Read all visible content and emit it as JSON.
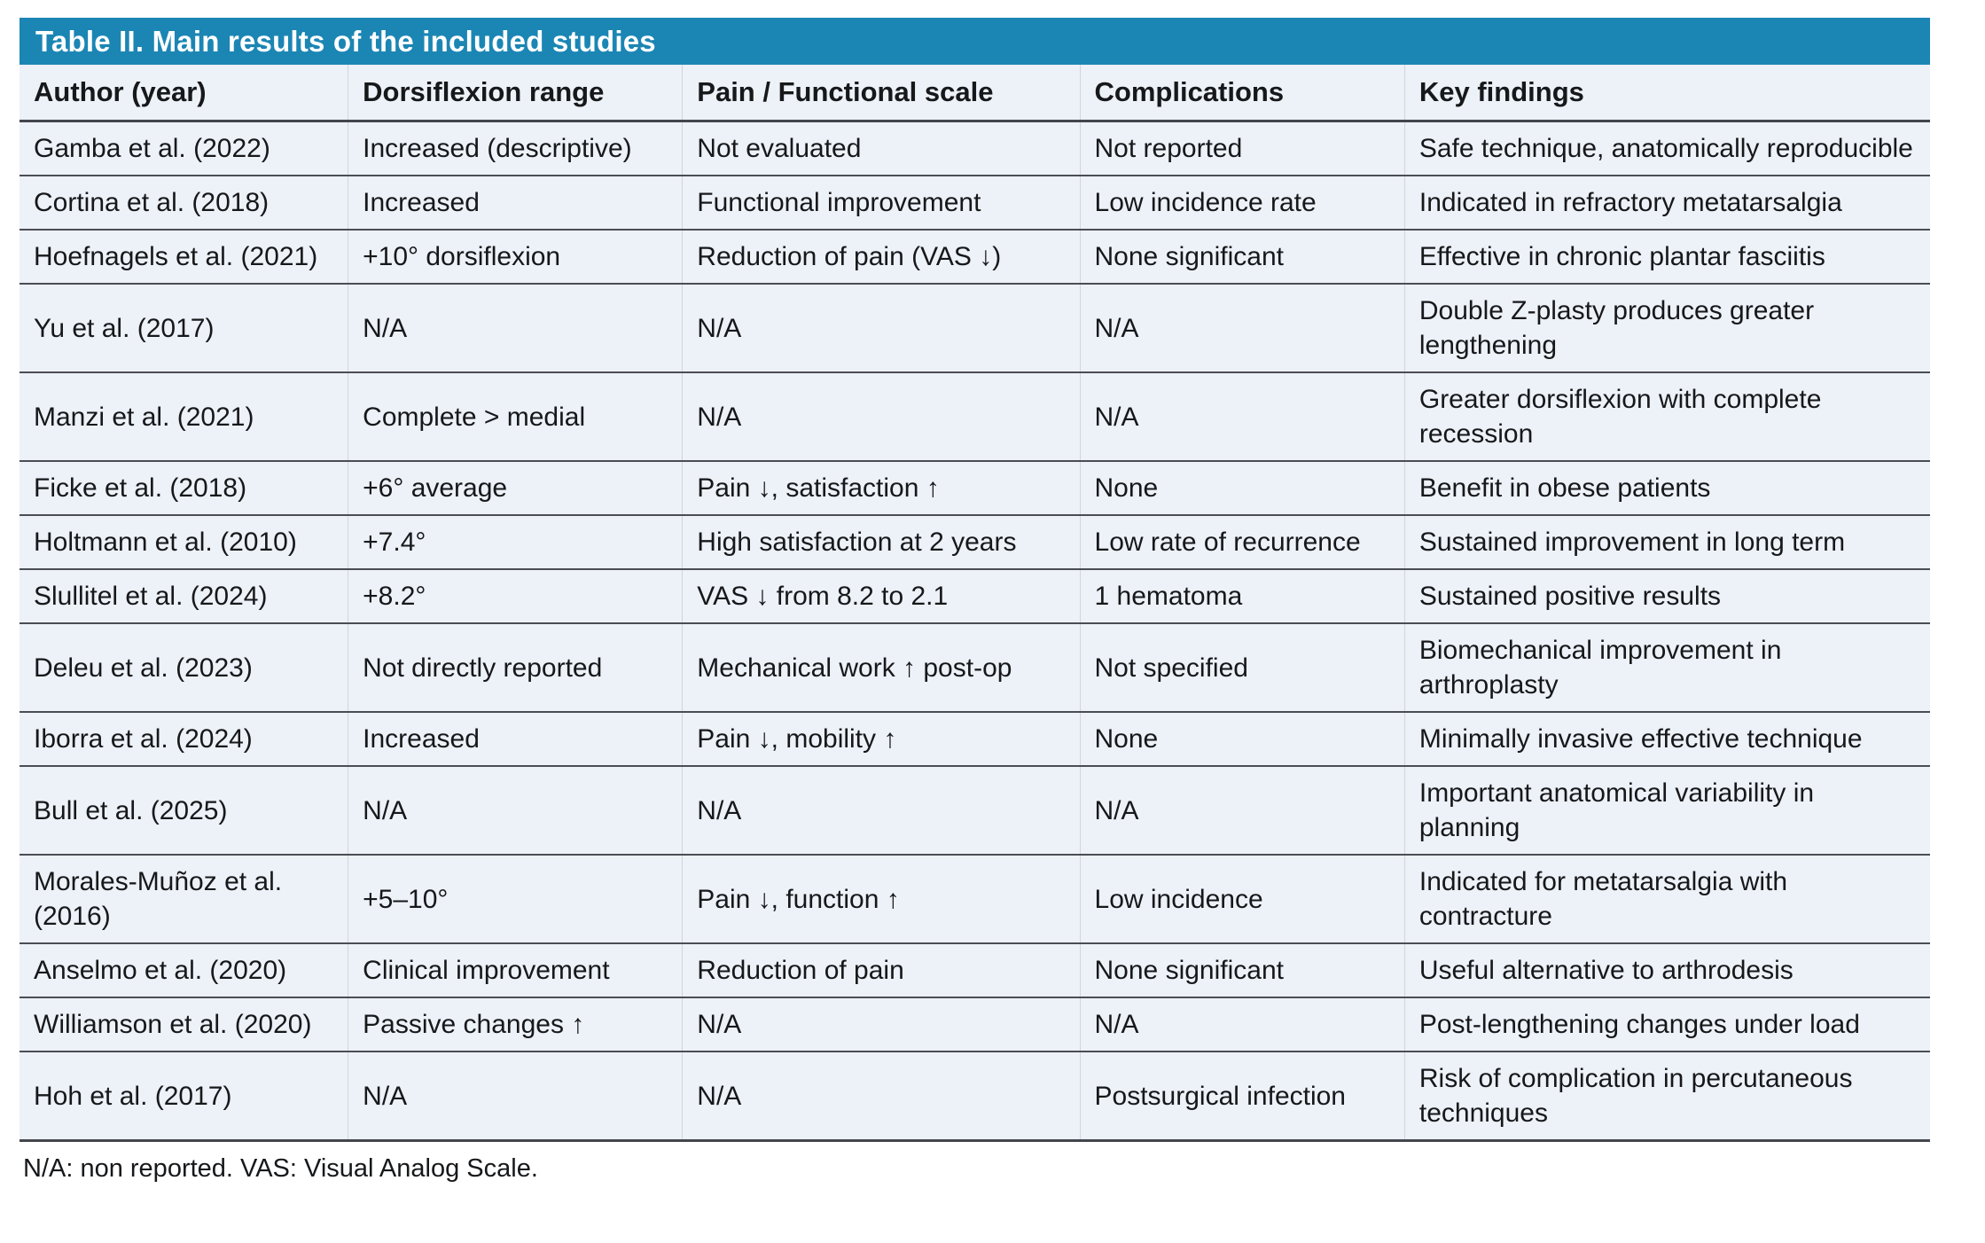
{
  "title": "Table II. Main results of the included studies",
  "footnote": "N/A: non reported. VAS: Visual Analog Scale.",
  "colors": {
    "title_bar_background": "#1b86b4",
    "title_text": "#ffffff",
    "row_background": "#edf1f8",
    "dark_rule": "#43474d",
    "light_column_rule": "#cfd6e0"
  },
  "table": {
    "columns": [
      "Author (year)",
      "Dorsiflexion range",
      "Pain / Functional scale",
      "Complications",
      "Key findings"
    ],
    "rows": [
      [
        "Gamba et al. (2022)",
        "Increased (descriptive)",
        "Not evaluated",
        "Not reported",
        "Safe technique, anatomically reproducible"
      ],
      [
        "Cortina et al. (2018)",
        "Increased",
        "Functional improvement",
        "Low incidence rate",
        "Indicated in refractory metatarsalgia"
      ],
      [
        "Hoefnagels et al. (2021)",
        "+10° dorsiflexion",
        "Reduction of pain (VAS ↓)",
        "None significant",
        "Effective in chronic plantar fasciitis"
      ],
      [
        "Yu et al. (2017)",
        "N/A",
        "N/A",
        "N/A",
        "Double Z-plasty produces greater lengthening"
      ],
      [
        "Manzi et al. (2021)",
        "Complete > medial",
        "N/A",
        "N/A",
        "Greater dorsiflexion with complete recession"
      ],
      [
        "Ficke et al. (2018)",
        "+6° average",
        "Pain ↓, satisfaction ↑",
        "None",
        "Benefit in obese patients"
      ],
      [
        "Holtmann et al. (2010)",
        "+7.4°",
        "High satisfaction at 2 years",
        "Low rate of recurrence",
        "Sustained improvement in long term"
      ],
      [
        "Slullitel et al. (2024)",
        "+8.2°",
        "VAS ↓ from 8.2 to 2.1",
        "1 hematoma",
        "Sustained positive results"
      ],
      [
        "Deleu et al. (2023)",
        "Not directly reported",
        "Mechanical work ↑ post-op",
        "Not specified",
        "Biomechanical improvement in arthroplasty"
      ],
      [
        "Iborra et al. (2024)",
        "Increased",
        "Pain ↓, mobility ↑",
        "None",
        "Minimally invasive effective technique"
      ],
      [
        "Bull et al. (2025)",
        "N/A",
        "N/A",
        "N/A",
        "Important anatomical variability in planning"
      ],
      [
        "Morales-Muñoz et al. (2016)",
        "+5–10°",
        "Pain ↓, function ↑",
        "Low incidence",
        "Indicated for metatarsalgia with contracture"
      ],
      [
        "Anselmo et al. (2020)",
        "Clinical improvement",
        "Reduction of pain",
        "None significant",
        "Useful alternative to arthrodesis"
      ],
      [
        "Williamson et al. (2020)",
        "Passive changes ↑",
        "N/A",
        "N/A",
        "Post-lengthening changes under load"
      ],
      [
        "Hoh et al. (2017)",
        "N/A",
        "N/A",
        "Postsurgical infection",
        "Risk of complication in percutaneous techniques"
      ]
    ]
  }
}
